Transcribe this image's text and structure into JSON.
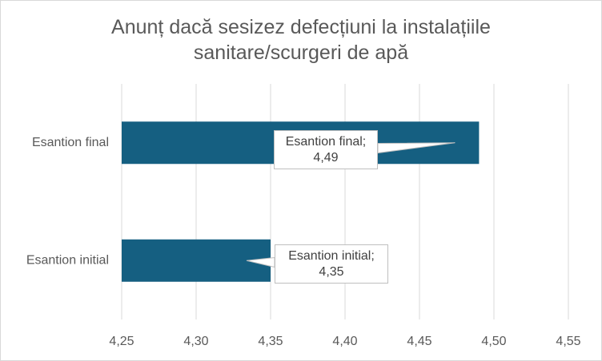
{
  "chart_data": {
    "type": "bar",
    "orientation": "horizontal",
    "title": "Anunț dacă sesizez defecțiuni la instalațiile\nsanitare/scurgeri de apă",
    "categories": [
      "Esantion final",
      "Esantion initial"
    ],
    "values": [
      4.49,
      4.35
    ],
    "value_labels": [
      "Esantion final;\n4,49",
      "Esantion initial;\n4,35"
    ],
    "color": "#155f81",
    "xlim": [
      4.25,
      4.55
    ],
    "xticks": [
      {
        "value": 4.25,
        "label": "4,25"
      },
      {
        "value": 4.3,
        "label": "4,30"
      },
      {
        "value": 4.35,
        "label": "4,35"
      },
      {
        "value": 4.4,
        "label": "4,40"
      },
      {
        "value": 4.45,
        "label": "4,45"
      },
      {
        "value": 4.5,
        "label": "4,50"
      },
      {
        "value": 4.55,
        "label": "4,55"
      }
    ],
    "grid": true
  }
}
